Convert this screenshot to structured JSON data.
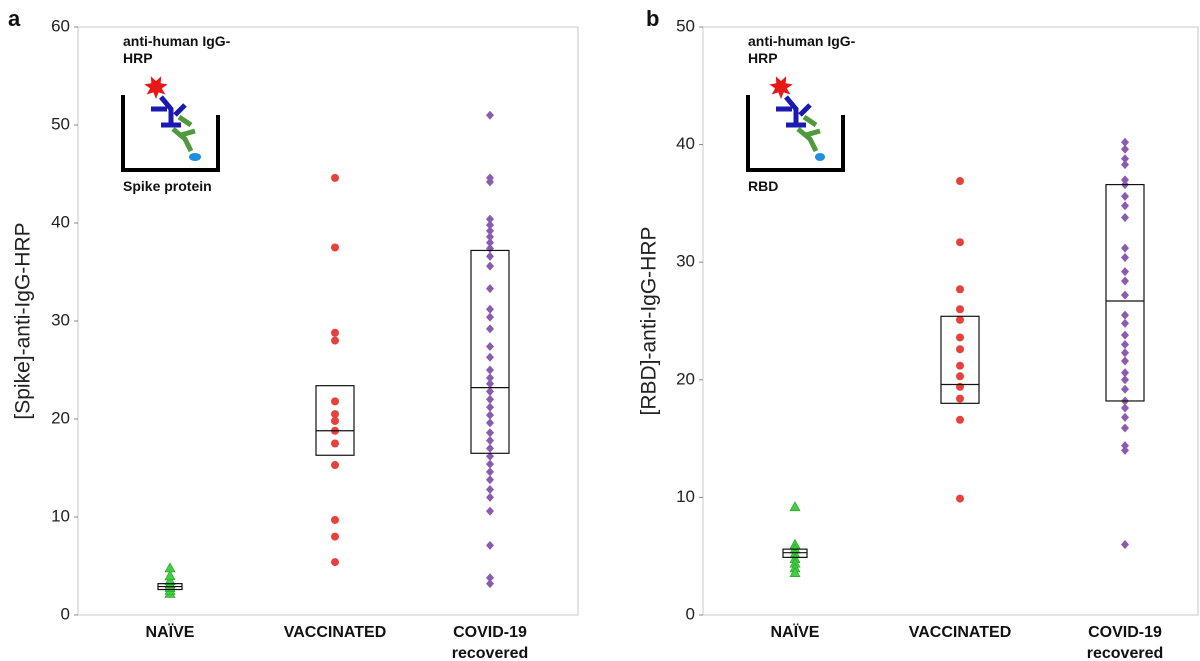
{
  "chart_data": [
    {
      "type": "strip",
      "panel_label": "a",
      "ylabel": "[Spike]-anti-IgG-HRP",
      "inset_label": "anti-human IgG-HRP",
      "inset_target": "Spike protein",
      "ylim": [
        0,
        60
      ],
      "yticks": [
        0,
        10,
        20,
        30,
        40,
        50,
        60
      ],
      "categories": [
        "NAÏVE",
        "VACCINATED",
        "COVID-19 recovered"
      ],
      "groups": [
        {
          "marker": "triangle",
          "color": "#3fcf3f",
          "values": [
            2.2,
            2.5,
            2.8,
            3.0,
            3.2,
            3.5,
            4.0,
            4.8
          ],
          "box": {
            "q1": 2.6,
            "median": 2.9,
            "q3": 3.2
          }
        },
        {
          "marker": "circle",
          "color": "#e8403a",
          "values": [
            44.6,
            37.5,
            28.8,
            28.0,
            21.8,
            20.5,
            19.8,
            18.8,
            17.5,
            15.3,
            9.7,
            8.0,
            5.4
          ],
          "box": {
            "q1": 16.3,
            "median": 18.8,
            "q3": 23.4
          }
        },
        {
          "marker": "diamond",
          "color": "#8a5bb0",
          "values": [
            51,
            44.6,
            44.2,
            40.4,
            39.8,
            39.2,
            38.6,
            38,
            37.4,
            36.6,
            35.6,
            33.3,
            31.2,
            30.4,
            29.2,
            27.4,
            26.3,
            25,
            24.2,
            23.6,
            22.8,
            22,
            21.2,
            20.4,
            19.6,
            18.6,
            17.8,
            17,
            16.2,
            15.4,
            14.6,
            13.8,
            12.8,
            12,
            10.6,
            7.1,
            3.8,
            3.2
          ],
          "box": {
            "q1": 16.5,
            "median": 23.2,
            "q3": 37.2
          }
        }
      ]
    },
    {
      "type": "strip",
      "panel_label": "b",
      "ylabel": "[RBD]-anti-IgG-HRP",
      "inset_label": "anti-human IgG-HRP",
      "inset_target": "RBD",
      "ylim": [
        0,
        50
      ],
      "yticks": [
        0,
        10,
        20,
        30,
        40,
        50
      ],
      "categories": [
        "NAÏVE",
        "VACCINATED",
        "COVID-19 recovered"
      ],
      "groups": [
        {
          "marker": "triangle",
          "color": "#3fcf3f",
          "values": [
            9.2,
            6.0,
            5.6,
            5.2,
            4.8,
            4.4,
            4.0,
            3.6
          ],
          "box": {
            "q1": 4.9,
            "median": 5.3,
            "q3": 5.6
          }
        },
        {
          "marker": "circle",
          "color": "#e8403a",
          "values": [
            36.9,
            31.7,
            27.7,
            26,
            25.1,
            23.6,
            22.6,
            21.2,
            20.3,
            19.4,
            18.4,
            16.6,
            9.9
          ],
          "box": {
            "q1": 18.0,
            "median": 19.6,
            "q3": 25.4
          }
        },
        {
          "marker": "diamond",
          "color": "#8a5bb0",
          "values": [
            40.2,
            39.6,
            38.8,
            38.3,
            37,
            36.6,
            35.6,
            34.8,
            33.8,
            31.2,
            30.4,
            29.2,
            28.4,
            27.2,
            25.5,
            24.8,
            23.8,
            23,
            22.3,
            21.6,
            20.6,
            20,
            19.2,
            18.2,
            17.6,
            16.8,
            15.9,
            14.4,
            14,
            6.0
          ],
          "box": {
            "q1": 18.2,
            "median": 26.7,
            "q3": 36.6
          }
        }
      ]
    }
  ]
}
